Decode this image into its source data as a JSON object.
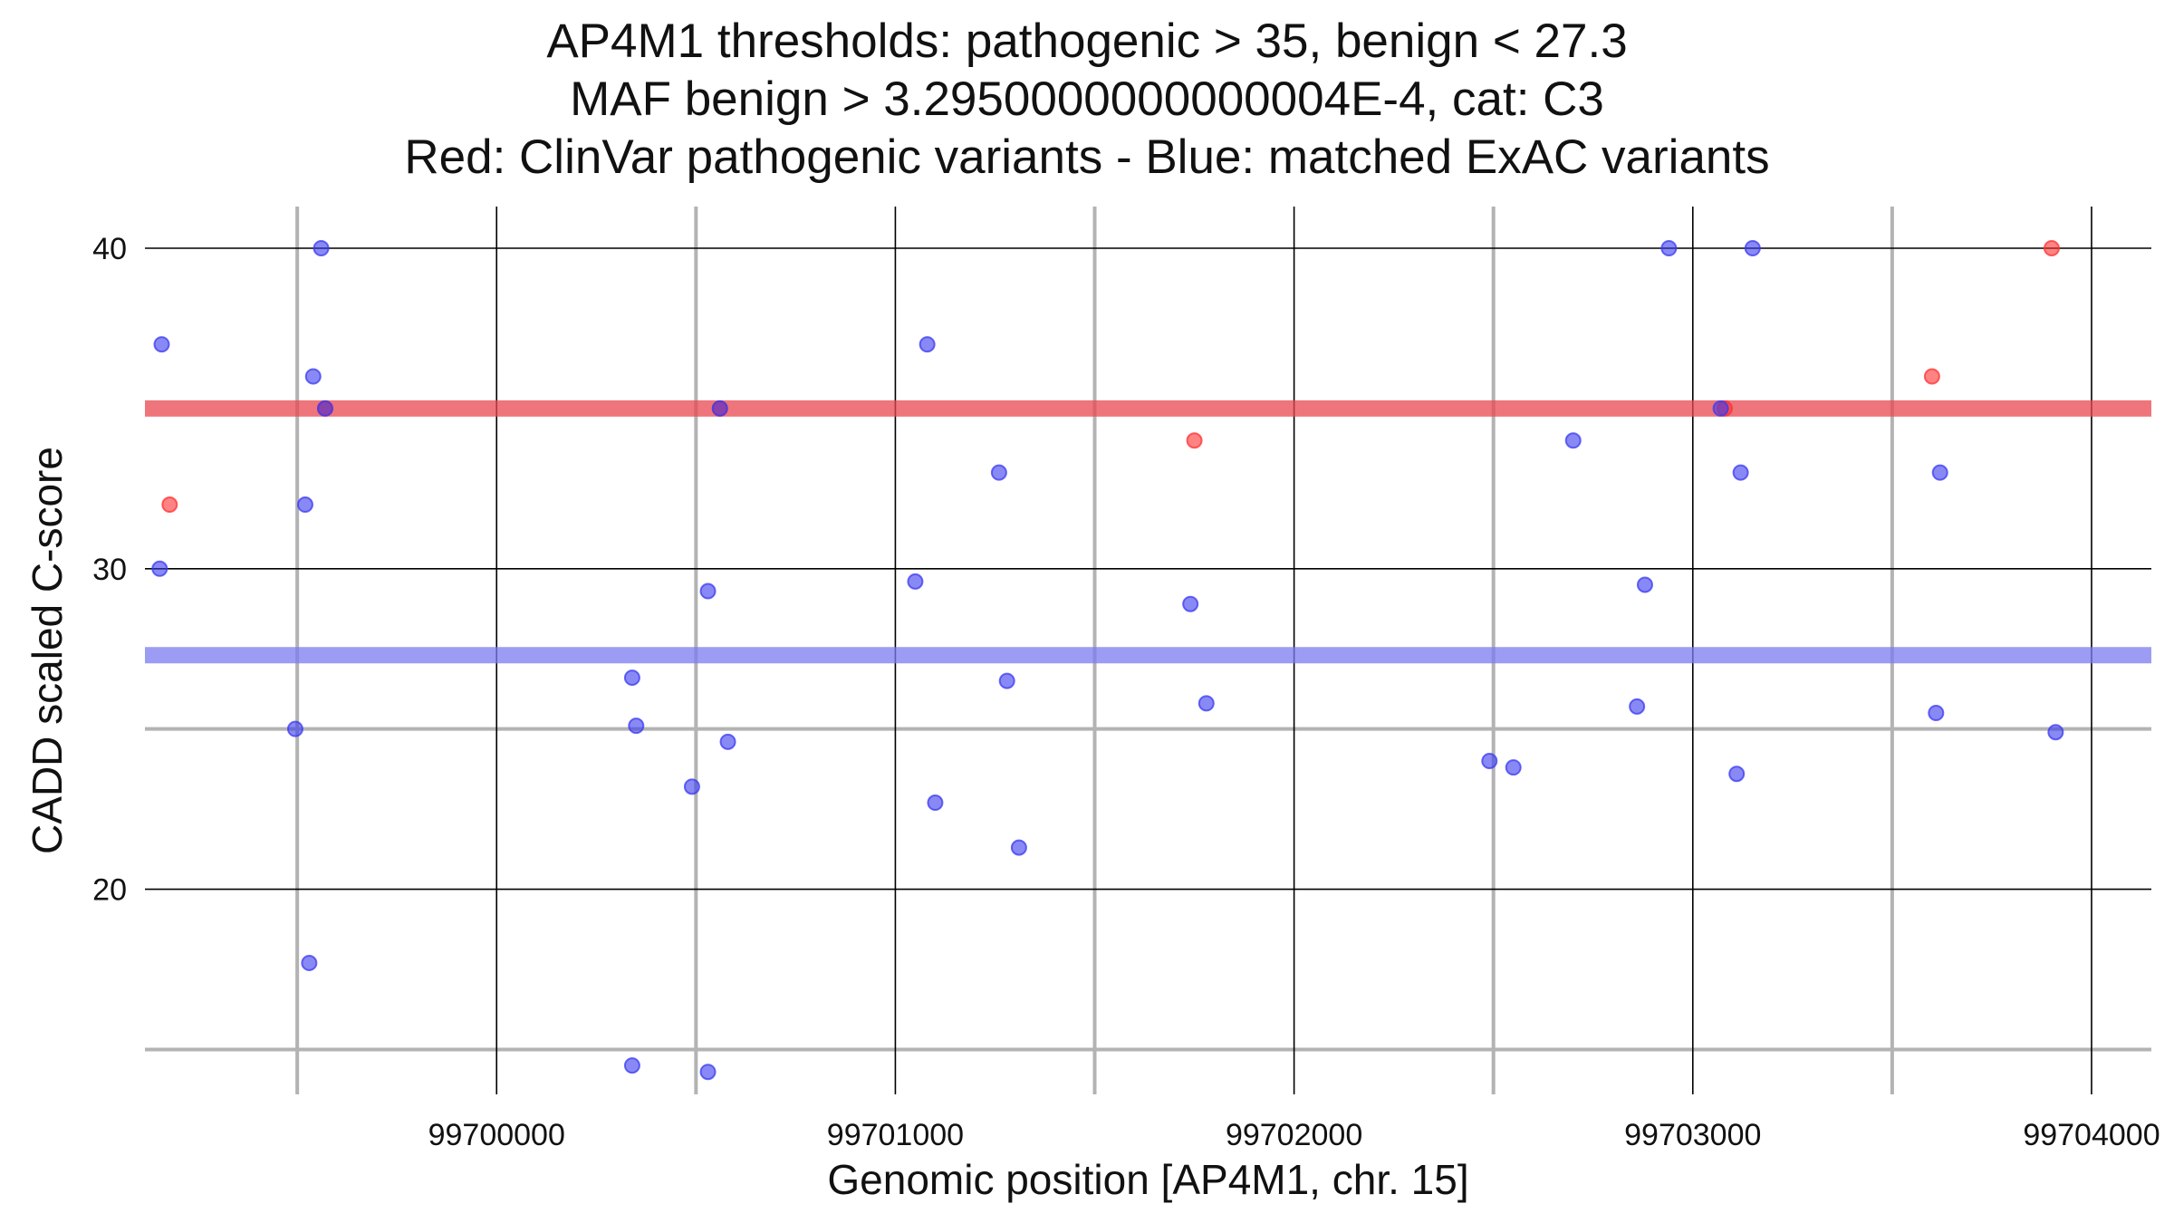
{
  "chart_data": {
    "type": "scatter",
    "title_lines": [
      "AP4M1 thresholds: pathogenic > 35, benign < 27.3",
      "MAF benign > 3.2950000000000004E-4, cat: C3",
      "Red: ClinVar pathogenic variants - Blue: matched ExAC variants"
    ],
    "xlabel": "Genomic position [AP4M1, chr. 15]",
    "ylabel": "CADD scaled C-score",
    "xlim": [
      99699118,
      99704150
    ],
    "ylim": [
      13.6,
      41.3
    ],
    "x_major_ticks": [
      99700000,
      99701000,
      99702000,
      99703000,
      99704000
    ],
    "x_tick_labels": [
      "99700000",
      "99701000",
      "99702000",
      "99703000",
      "99704000"
    ],
    "x_minor_ticks": [
      99699500,
      99700500,
      99701500,
      99702500,
      99703500
    ],
    "y_major_ticks": [
      20,
      30,
      40
    ],
    "y_tick_labels": [
      "20",
      "30",
      "40"
    ],
    "y_minor_ticks": [
      15,
      25
    ],
    "grid": true,
    "thresholds": [
      {
        "name": "pathogenic",
        "value": 35,
        "color": "#e8474f"
      },
      {
        "name": "benign",
        "value": 27.3,
        "color": "#7b7bf0"
      }
    ],
    "colors": {
      "pathogenic": "#ff3030",
      "benign": "#3a3af0"
    },
    "series": [
      {
        "name": "ClinVar pathogenic variants",
        "color": "#ff3030",
        "points": [
          {
            "x": 99699180,
            "y": 32
          },
          {
            "x": 99699570,
            "y": 35
          },
          {
            "x": 99700560,
            "y": 35
          },
          {
            "x": 99701750,
            "y": 34
          },
          {
            "x": 99703080,
            "y": 35
          },
          {
            "x": 99703600,
            "y": 36
          },
          {
            "x": 99703900,
            "y": 40
          }
        ]
      },
      {
        "name": "matched ExAC variants",
        "color": "#3a3af0",
        "points": [
          {
            "x": 99699160,
            "y": 37
          },
          {
            "x": 99699155,
            "y": 30
          },
          {
            "x": 99699560,
            "y": 40
          },
          {
            "x": 99699540,
            "y": 36
          },
          {
            "x": 99699570,
            "y": 35
          },
          {
            "x": 99699520,
            "y": 32
          },
          {
            "x": 99699495,
            "y": 25
          },
          {
            "x": 99699530,
            "y": 17.7
          },
          {
            "x": 99700340,
            "y": 26.6
          },
          {
            "x": 99700350,
            "y": 25.1
          },
          {
            "x": 99700340,
            "y": 14.5
          },
          {
            "x": 99700490,
            "y": 23.2
          },
          {
            "x": 99700530,
            "y": 29.3
          },
          {
            "x": 99700530,
            "y": 14.3
          },
          {
            "x": 99700560,
            "y": 35
          },
          {
            "x": 99700580,
            "y": 24.6
          },
          {
            "x": 99701050,
            "y": 29.6
          },
          {
            "x": 99701080,
            "y": 37
          },
          {
            "x": 99701100,
            "y": 22.7
          },
          {
            "x": 99701260,
            "y": 33
          },
          {
            "x": 99701280,
            "y": 26.5
          },
          {
            "x": 99701310,
            "y": 21.3
          },
          {
            "x": 99701740,
            "y": 28.9
          },
          {
            "x": 99701780,
            "y": 25.8
          },
          {
            "x": 99702490,
            "y": 24
          },
          {
            "x": 99702550,
            "y": 23.8
          },
          {
            "x": 99702700,
            "y": 34
          },
          {
            "x": 99702860,
            "y": 25.7
          },
          {
            "x": 99702880,
            "y": 29.5
          },
          {
            "x": 99702940,
            "y": 40
          },
          {
            "x": 99703070,
            "y": 35
          },
          {
            "x": 99703110,
            "y": 23.6
          },
          {
            "x": 99703120,
            "y": 33
          },
          {
            "x": 99703150,
            "y": 40
          },
          {
            "x": 99703610,
            "y": 25.5
          },
          {
            "x": 99703620,
            "y": 33
          },
          {
            "x": 99703910,
            "y": 24.9
          }
        ]
      }
    ]
  }
}
